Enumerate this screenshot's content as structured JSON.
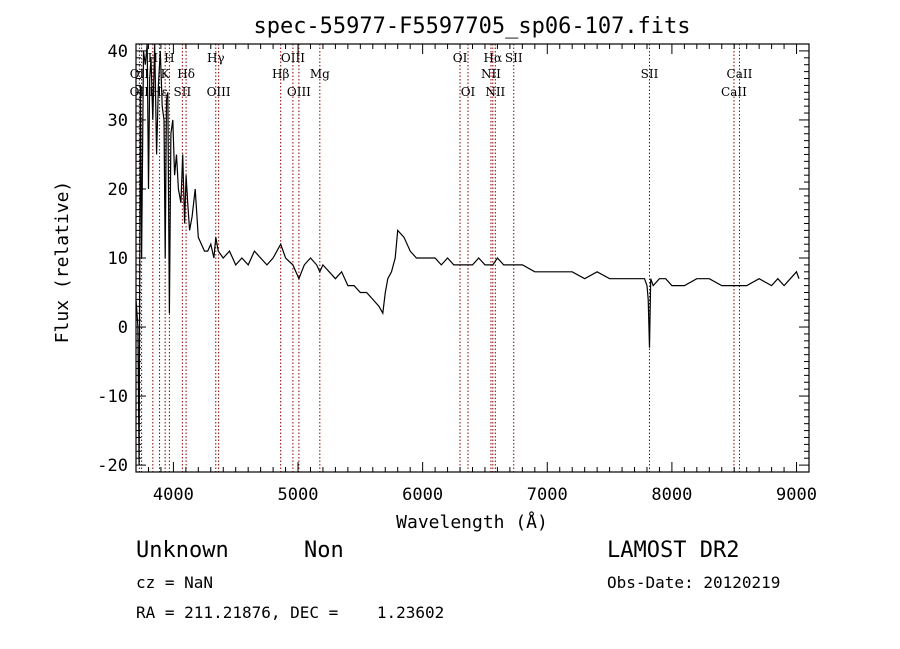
{
  "chart_data": {
    "type": "line",
    "title": "spec-55977-F5597705_sp06-107.fits",
    "xlabel": "Wavelength (Å)",
    "ylabel": "Flux (relative)",
    "xlim": [
      3700,
      9100
    ],
    "ylim": [
      -21,
      41
    ],
    "xticks": [
      4000,
      5000,
      6000,
      7000,
      8000,
      9000
    ],
    "yticks": [
      -20,
      -10,
      0,
      10,
      20,
      30,
      40
    ],
    "grid": false,
    "line_color": "#000000",
    "marker_color": "#8b0000",
    "series": [
      {
        "x": [
          3700,
          3715,
          3725,
          3735,
          3745,
          3760,
          3775,
          3790,
          3800,
          3810,
          3820,
          3835,
          3850,
          3865,
          3880,
          3895,
          3910,
          3925,
          3934,
          3945,
          3955,
          3968,
          3980,
          3995,
          4010,
          4025,
          4040,
          4060,
          4075,
          4090,
          4102,
          4115,
          4130,
          4150,
          4175,
          4200,
          4225,
          4250,
          4275,
          4300,
          4325,
          4340,
          4360,
          4400,
          4450,
          4500,
          4550,
          4600,
          4650,
          4700,
          4750,
          4800,
          4861,
          4900,
          4959,
          5007,
          5050,
          5100,
          5150,
          5175,
          5200,
          5250,
          5300,
          5350,
          5400,
          5450,
          5500,
          5550,
          5600,
          5650,
          5680,
          5700,
          5720,
          5750,
          5780,
          5800,
          5850,
          5900,
          5950,
          6000,
          6050,
          6100,
          6150,
          6200,
          6250,
          6300,
          6350,
          6400,
          6450,
          6500,
          6563,
          6600,
          6650,
          6700,
          6750,
          6800,
          6900,
          7000,
          7100,
          7200,
          7300,
          7400,
          7500,
          7600,
          7700,
          7780,
          7800,
          7810,
          7820,
          7830,
          7850,
          7900,
          7950,
          8000,
          8100,
          8200,
          8300,
          8400,
          8500,
          8600,
          8700,
          8800,
          8850,
          8900,
          8950,
          9000,
          9020
        ],
        "y": [
          4,
          0,
          -20,
          35,
          10,
          40,
          38,
          41,
          20,
          36,
          39,
          30,
          41,
          25,
          35,
          40,
          32,
          30,
          10,
          33,
          34,
          2,
          28,
          30,
          22,
          25,
          20,
          18,
          25,
          15,
          22,
          18,
          14,
          16,
          20,
          13,
          12,
          11,
          11,
          12,
          10,
          13,
          11,
          10,
          11,
          9,
          10,
          9,
          11,
          10,
          9,
          10,
          12,
          10,
          9,
          7,
          9,
          10,
          9,
          8,
          9,
          8,
          7,
          8,
          6,
          6,
          5,
          5,
          4,
          3,
          2,
          5,
          7,
          8,
          10,
          14,
          13,
          11,
          10,
          10,
          10,
          10,
          9,
          10,
          9,
          9,
          9,
          9,
          10,
          9,
          9,
          10,
          9,
          9,
          9,
          9,
          8,
          8,
          8,
          8,
          7,
          8,
          7,
          7,
          7,
          7,
          6,
          4,
          -3,
          7,
          6,
          7,
          7,
          6,
          6,
          7,
          7,
          6,
          6,
          6,
          7,
          6,
          7,
          6,
          7,
          8,
          7
        ]
      }
    ],
    "lines": [
      {
        "label": "OII",
        "x": 3727,
        "row": 1
      },
      {
        "label": "OIII",
        "x": 3745,
        "row": 2
      },
      {
        "label": "H",
        "x": 3835,
        "row": 0
      },
      {
        "label": "Hε",
        "x": 3889,
        "row": 2
      },
      {
        "label": "K",
        "x": 3934,
        "row": 1
      },
      {
        "label": "H",
        "x": 3968,
        "row": 0
      },
      {
        "label": "Hδ",
        "x": 4102,
        "row": 1
      },
      {
        "label": "SII",
        "x": 4072,
        "row": 2
      },
      {
        "label": "Hγ",
        "x": 4340,
        "row": 0
      },
      {
        "label": "OIII",
        "x": 4363,
        "row": 2
      },
      {
        "label": "Hβ",
        "x": 4861,
        "row": 1
      },
      {
        "label": "OIII",
        "x": 4959,
        "row": 0
      },
      {
        "label": "OIII",
        "x": 5007,
        "row": 2
      },
      {
        "label": "Mg",
        "x": 5175,
        "row": 1
      },
      {
        "label": "OI",
        "x": 6300,
        "row": 0
      },
      {
        "label": "OI",
        "x": 6364,
        "row": 2
      },
      {
        "label": "Hα",
        "x": 6563,
        "row": 0
      },
      {
        "label": "NII",
        "x": 6548,
        "row": 1
      },
      {
        "label": "NII",
        "x": 6583,
        "row": 2
      },
      {
        "label": "SII",
        "x": 6731,
        "row": 0
      },
      {
        "label": "SII",
        "x": 7820,
        "row": 1
      },
      {
        "label": "CaII",
        "x": 8542,
        "row": 1
      },
      {
        "label": "CaII",
        "x": 8498,
        "row": 2
      }
    ]
  },
  "footer": {
    "class_label": "Unknown",
    "subclass_label": "Non",
    "survey": "LAMOST DR2",
    "cz": "cz = NaN",
    "obs_date": "Obs-Date: 20120219",
    "radec": "RA = 211.21876, DEC =    1.23602"
  }
}
